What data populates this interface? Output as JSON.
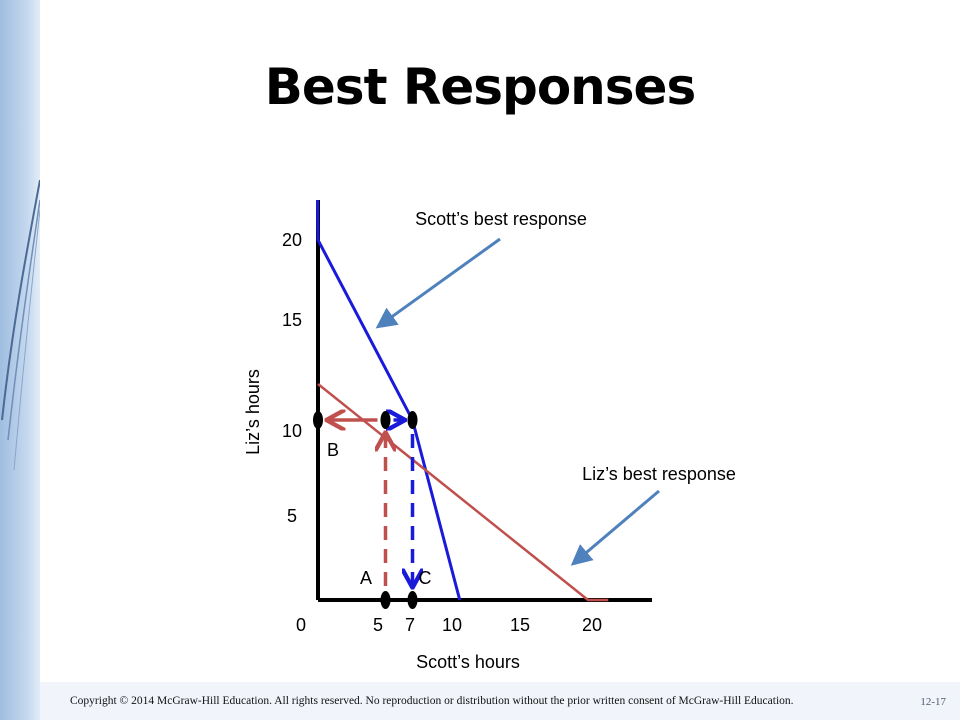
{
  "slide": {
    "title": "Best Responses",
    "copyright": "Copyright © 2014 McGraw-Hill Education. All rights reserved. No reproduction or distribution without the prior written consent of McGraw-Hill Education.",
    "slide_number": "12-17"
  },
  "colors": {
    "scott_line": "#1a1adb",
    "liz_line": "#c0504d",
    "callout_arrow": "#4f81bd",
    "axis": "#000000"
  },
  "chart_data": {
    "type": "line",
    "xlabel": "Scott’s hours",
    "ylabel": "Liz’s hours",
    "x_ticks": [
      "0",
      "5",
      "7",
      "10",
      "15",
      "20"
    ],
    "y_ticks": [
      "20",
      "15",
      "10",
      "5"
    ],
    "series": [
      {
        "name": "Scott’s best response",
        "points": [
          [
            0,
            20
          ],
          [
            7,
            10
          ],
          [
            10.5,
            0
          ]
        ]
      },
      {
        "name": "Liz’s best response",
        "points": [
          [
            0,
            12
          ],
          [
            20,
            0
          ],
          [
            21.5,
            0
          ]
        ]
      }
    ],
    "points": [
      {
        "label": "A",
        "x": 5,
        "y": 0
      },
      {
        "label": "C",
        "x": 7,
        "y": 0
      },
      {
        "label": "B",
        "x": 0,
        "y": 10
      }
    ],
    "responses": [
      {
        "from": "A",
        "to": [
          5,
          10
        ],
        "then_to": "B",
        "color": "liz"
      },
      {
        "from": "C",
        "to": [
          7,
          10
        ],
        "from_point": [
          5,
          10
        ],
        "color": "scott"
      }
    ]
  }
}
